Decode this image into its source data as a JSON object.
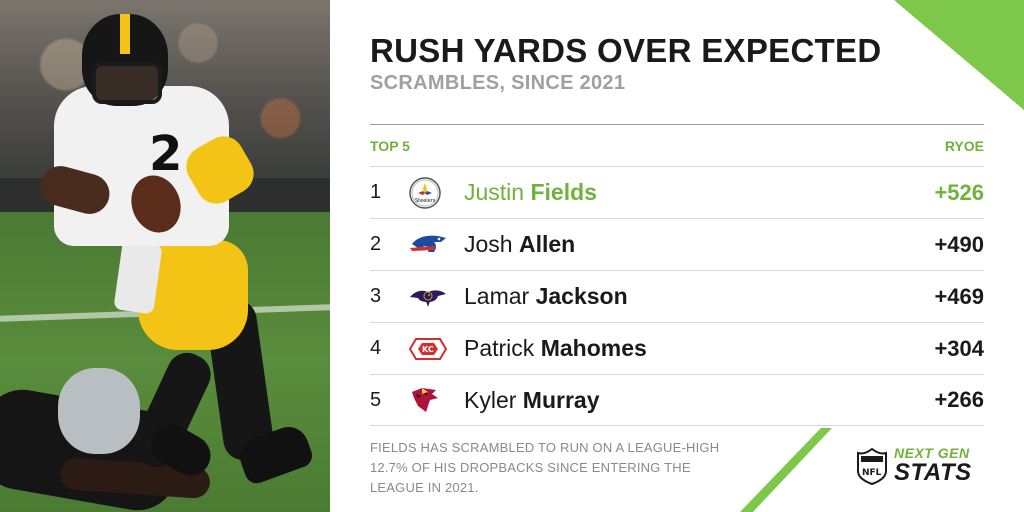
{
  "header": {
    "title": "RUSH YARDS OVER EXPECTED",
    "subtitle": "SCRAMBLES, SINCE 2021"
  },
  "table": {
    "left_header": "TOP 5",
    "right_header": "RYOE",
    "rows": [
      {
        "rank": "1",
        "first": "Justin",
        "last": "Fields",
        "value": "+526",
        "team_icon": "steelers-logo-icon"
      },
      {
        "rank": "2",
        "first": "Josh",
        "last": "Allen",
        "value": "+490",
        "team_icon": "bills-logo-icon"
      },
      {
        "rank": "3",
        "first": "Lamar",
        "last": "Jackson",
        "value": "+469",
        "team_icon": "ravens-logo-icon"
      },
      {
        "rank": "4",
        "first": "Patrick",
        "last": "Mahomes",
        "value": "+304",
        "team_icon": "chiefs-logo-icon"
      },
      {
        "rank": "5",
        "first": "Kyler",
        "last": "Murray",
        "value": "+266",
        "team_icon": "cardinals-logo-icon"
      }
    ]
  },
  "footnote": "FIELDS HAS SCRAMBLED TO RUN ON A LEAGUE-HIGH 12.7% OF HIS DROPBACKS SINCE ENTERING THE LEAGUE IN 2021.",
  "brand": {
    "top": "NEXT GEN",
    "bottom": "STATS"
  },
  "colors": {
    "accent": "#6fb33a",
    "title": "#1a1a1a",
    "subtitle": "#a0a0a0"
  }
}
